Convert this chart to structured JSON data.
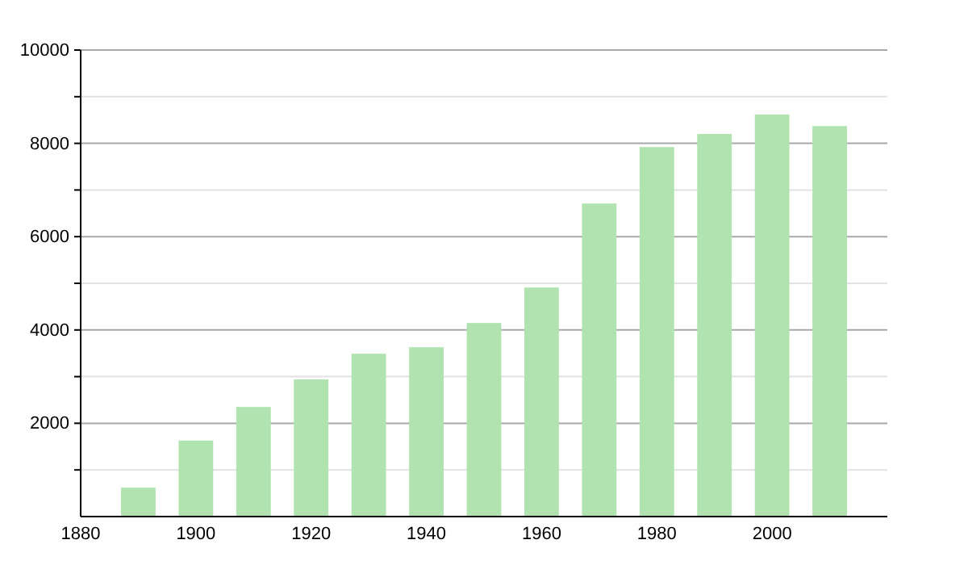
{
  "chart_data": {
    "type": "bar",
    "x": [
      1890,
      1900,
      1910,
      1920,
      1930,
      1940,
      1950,
      1960,
      1970,
      1980,
      1990,
      2000,
      2010
    ],
    "values": [
      620,
      1630,
      2350,
      2940,
      3490,
      3630,
      4150,
      4910,
      6710,
      7920,
      8200,
      8620,
      8370
    ],
    "color": "#b0e3b0",
    "xlim": [
      1880,
      2020
    ],
    "xticks": [
      1880,
      1900,
      1920,
      1940,
      1960,
      1980,
      2000
    ],
    "ylim": [
      0,
      10000
    ],
    "yticks": [
      {
        "value": 1000,
        "label": null
      },
      2000,
      {
        "value": 3000,
        "label": null
      },
      4000,
      {
        "value": 5000,
        "label": null
      },
      6000,
      {
        "value": 7000,
        "label": null
      },
      8000,
      {
        "value": 9000,
        "label": null
      },
      10000
    ],
    "grid": "y"
  }
}
